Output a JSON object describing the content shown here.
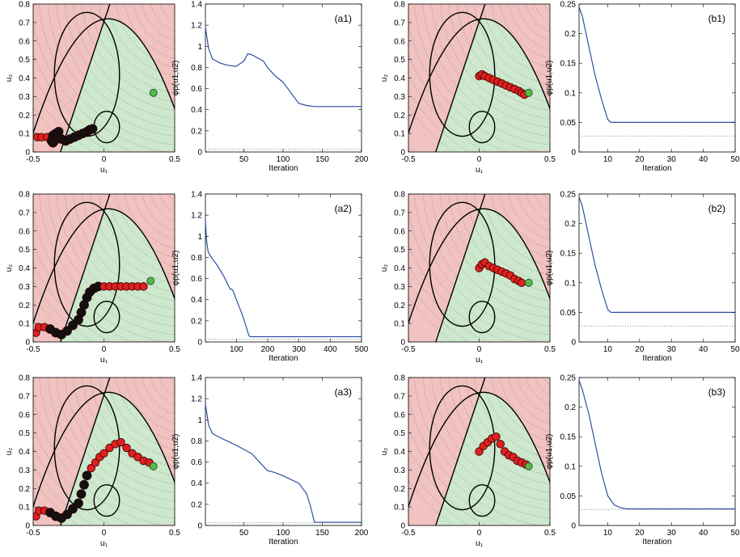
{
  "colors": {
    "infeasible": "#f0c2c0",
    "feasible": "#cde8cc",
    "path_point": "#e02020",
    "path_point_dark": "#111111",
    "optimum": "#55bb44",
    "series_line": "#2d4fa3",
    "target_line": "#666666",
    "contour": "#555555"
  },
  "chart_data": [
    {
      "id": "a1-map",
      "type": "scatter",
      "xlabel": "u₁",
      "ylabel": "u₂",
      "xlim": [
        -0.5,
        0.5
      ],
      "ylim": [
        0,
        0.8
      ],
      "xticks": [
        "-0.5",
        "0",
        "0.5"
      ],
      "yticks": [
        "0",
        "0.1",
        "0.2",
        "0.3",
        "0.4",
        "0.5",
        "0.6",
        "0.7",
        "0.8"
      ],
      "optimum": [
        0.35,
        0.32
      ],
      "points": [
        [
          -0.47,
          0.08
        ],
        [
          -0.44,
          0.08
        ],
        [
          -0.4,
          0.08
        ],
        [
          -0.37,
          0.06
        ],
        [
          -0.36,
          0.05
        ],
        [
          -0.35,
          0.06
        ],
        [
          -0.36,
          0.09
        ],
        [
          -0.34,
          0.1
        ],
        [
          -0.32,
          0.11
        ],
        [
          -0.3,
          0.07
        ],
        [
          -0.27,
          0.06
        ],
        [
          -0.24,
          0.07
        ],
        [
          -0.21,
          0.08
        ],
        [
          -0.18,
          0.09
        ],
        [
          -0.15,
          0.1
        ],
        [
          -0.12,
          0.11
        ],
        [
          -0.1,
          0.12
        ],
        [
          -0.08,
          0.125
        ]
      ],
      "dark_from": 3
    },
    {
      "id": "a1-cost",
      "type": "line",
      "xlabel": "Iteration",
      "ylabel": "φp(u1,u2)",
      "xlim": [
        1,
        200
      ],
      "ylim": [
        0,
        1.4
      ],
      "xticks": [
        50,
        100,
        150,
        200
      ],
      "yticks": [
        "0",
        "0.2",
        "0.4",
        "0.6",
        "0.8",
        "1",
        "1.2",
        "1.4"
      ],
      "annotation": "(a1)",
      "target": 0.025,
      "series": [
        {
          "x": [
            1,
            5,
            10,
            20,
            30,
            40,
            50,
            55,
            60,
            70,
            75,
            80,
            90,
            100,
            110,
            120,
            130,
            140,
            150,
            200
          ],
          "y": [
            1.18,
            0.98,
            0.88,
            0.84,
            0.82,
            0.81,
            0.86,
            0.93,
            0.92,
            0.88,
            0.86,
            0.8,
            0.72,
            0.66,
            0.56,
            0.46,
            0.44,
            0.43,
            0.43,
            0.43
          ]
        }
      ]
    },
    {
      "id": "b1-map",
      "type": "scatter",
      "xlabel": "u₁",
      "ylabel": "u₂",
      "xlim": [
        -0.5,
        0.5
      ],
      "ylim": [
        0,
        0.8
      ],
      "xticks": [
        "-0.5",
        "0",
        "0.5"
      ],
      "yticks": [
        "0",
        "0.1",
        "0.2",
        "0.3",
        "0.4",
        "0.5",
        "0.6",
        "0.7",
        "0.8"
      ],
      "optimum": [
        0.35,
        0.32
      ],
      "points": [
        [
          0.0,
          0.41
        ],
        [
          0.02,
          0.42
        ],
        [
          0.04,
          0.41
        ],
        [
          0.07,
          0.4
        ],
        [
          0.1,
          0.39
        ],
        [
          0.13,
          0.38
        ],
        [
          0.16,
          0.37
        ],
        [
          0.19,
          0.36
        ],
        [
          0.22,
          0.35
        ],
        [
          0.25,
          0.34
        ],
        [
          0.28,
          0.33
        ],
        [
          0.3,
          0.32
        ],
        [
          0.32,
          0.31
        ]
      ],
      "dark_from": 100
    },
    {
      "id": "b1-cost",
      "type": "line",
      "xlabel": "Iteration",
      "ylabel": "φp(u1,u2)",
      "xlim": [
        1,
        50
      ],
      "ylim": [
        0,
        0.25
      ],
      "xticks": [
        10,
        20,
        30,
        40,
        50
      ],
      "yticks": [
        "0",
        "0.05",
        "0.1",
        "0.15",
        "0.2",
        "0.25"
      ],
      "annotation": "(b1)",
      "target": 0.027,
      "series": [
        {
          "x": [
            1,
            2,
            4,
            6,
            8,
            10,
            11,
            12,
            50
          ],
          "y": [
            0.245,
            0.23,
            0.18,
            0.13,
            0.09,
            0.055,
            0.05,
            0.05,
            0.05
          ]
        }
      ]
    },
    {
      "id": "a2-map",
      "type": "scatter",
      "xlabel": "u₁",
      "ylabel": "u₂",
      "xlim": [
        -0.5,
        0.5
      ],
      "ylim": [
        0,
        0.8
      ],
      "xticks": [
        "-0.5",
        "0",
        "0.5"
      ],
      "yticks": [
        "0",
        "0.1",
        "0.2",
        "0.3",
        "0.4",
        "0.5",
        "0.6",
        "0.7",
        "0.8"
      ],
      "optimum": [
        0.33,
        0.33
      ],
      "points": [
        [
          -0.48,
          0.05
        ],
        [
          -0.46,
          0.08
        ],
        [
          -0.42,
          0.08
        ],
        [
          -0.38,
          0.07
        ],
        [
          -0.34,
          0.05
        ],
        [
          -0.3,
          0.04
        ],
        [
          -0.26,
          0.06
        ],
        [
          -0.22,
          0.09
        ],
        [
          -0.18,
          0.12
        ],
        [
          -0.16,
          0.16
        ],
        [
          -0.14,
          0.2
        ],
        [
          -0.12,
          0.24
        ],
        [
          -0.1,
          0.27
        ],
        [
          -0.07,
          0.29
        ],
        [
          -0.04,
          0.3
        ],
        [
          0.0,
          0.3
        ],
        [
          0.04,
          0.3
        ],
        [
          0.08,
          0.3
        ],
        [
          0.12,
          0.3
        ],
        [
          0.16,
          0.3
        ],
        [
          0.2,
          0.3
        ],
        [
          0.24,
          0.3
        ],
        [
          0.28,
          0.3
        ]
      ],
      "dark_from": 3,
      "dark_to": 14
    },
    {
      "id": "a2-cost",
      "type": "line",
      "xlabel": "Iteration",
      "ylabel": "φp(u1,u2)",
      "xlim": [
        1,
        500
      ],
      "ylim": [
        0,
        1.4
      ],
      "xticks": [
        100,
        200,
        300,
        400,
        500
      ],
      "yticks": [
        "0",
        "0.2",
        "0.4",
        "0.6",
        "0.8",
        "1",
        "1.2",
        "1.4"
      ],
      "annotation": "(a2)",
      "target": 0.025,
      "series": [
        {
          "x": [
            1,
            5,
            10,
            20,
            40,
            60,
            80,
            85,
            90,
            100,
            120,
            140,
            145,
            500
          ],
          "y": [
            1.15,
            0.95,
            0.85,
            0.8,
            0.72,
            0.62,
            0.5,
            0.5,
            0.48,
            0.4,
            0.25,
            0.06,
            0.05,
            0.05
          ]
        }
      ]
    },
    {
      "id": "b2-map",
      "type": "scatter",
      "xlabel": "u₁",
      "ylabel": "u₂",
      "xlim": [
        -0.5,
        0.5
      ],
      "ylim": [
        0,
        0.8
      ],
      "xticks": [
        "-0.5",
        "0",
        "0.5"
      ],
      "yticks": [
        "0",
        "0.1",
        "0.2",
        "0.3",
        "0.4",
        "0.5",
        "0.6",
        "0.7",
        "0.8"
      ],
      "optimum": [
        0.35,
        0.32
      ],
      "points": [
        [
          0.0,
          0.4
        ],
        [
          0.02,
          0.42
        ],
        [
          0.04,
          0.43
        ],
        [
          0.07,
          0.41
        ],
        [
          0.1,
          0.4
        ],
        [
          0.13,
          0.39
        ],
        [
          0.16,
          0.38
        ],
        [
          0.19,
          0.37
        ],
        [
          0.22,
          0.36
        ],
        [
          0.25,
          0.34
        ],
        [
          0.28,
          0.33
        ],
        [
          0.3,
          0.32
        ]
      ],
      "dark_from": 100
    },
    {
      "id": "b2-cost",
      "type": "line",
      "xlabel": "Iteration",
      "ylabel": "φp(u1,u2)",
      "xlim": [
        1,
        50
      ],
      "ylim": [
        0,
        0.25
      ],
      "xticks": [
        10,
        20,
        30,
        40,
        50
      ],
      "yticks": [
        "0",
        "0.05",
        "0.1",
        "0.15",
        "0.2",
        "0.25"
      ],
      "annotation": "(b2)",
      "target": 0.027,
      "series": [
        {
          "x": [
            1,
            2,
            4,
            6,
            8,
            10,
            11,
            12,
            50
          ],
          "y": [
            0.245,
            0.23,
            0.18,
            0.13,
            0.09,
            0.055,
            0.05,
            0.05,
            0.05
          ]
        }
      ]
    },
    {
      "id": "a3-map",
      "type": "scatter",
      "xlabel": "u₁",
      "ylabel": "u₂",
      "xlim": [
        -0.5,
        0.5
      ],
      "ylim": [
        0,
        0.8
      ],
      "xticks": [
        "-0.5",
        "0",
        "0.5"
      ],
      "yticks": [
        "0",
        "0.1",
        "0.2",
        "0.3",
        "0.4",
        "0.5",
        "0.6",
        "0.7",
        "0.8"
      ],
      "optimum": [
        0.35,
        0.32
      ],
      "points": [
        [
          -0.48,
          0.05
        ],
        [
          -0.46,
          0.08
        ],
        [
          -0.42,
          0.08
        ],
        [
          -0.38,
          0.07
        ],
        [
          -0.34,
          0.05
        ],
        [
          -0.3,
          0.04
        ],
        [
          -0.26,
          0.06
        ],
        [
          -0.22,
          0.09
        ],
        [
          -0.18,
          0.12
        ],
        [
          -0.16,
          0.17
        ],
        [
          -0.14,
          0.22
        ],
        [
          -0.12,
          0.27
        ],
        [
          -0.09,
          0.31
        ],
        [
          -0.06,
          0.34
        ],
        [
          -0.03,
          0.37
        ],
        [
          0.0,
          0.39
        ],
        [
          0.04,
          0.42
        ],
        [
          0.08,
          0.44
        ],
        [
          0.12,
          0.45
        ],
        [
          0.16,
          0.42
        ],
        [
          0.2,
          0.39
        ],
        [
          0.24,
          0.37
        ],
        [
          0.28,
          0.35
        ],
        [
          0.32,
          0.34
        ]
      ],
      "dark_from": 3,
      "dark_to": 11
    },
    {
      "id": "a3-cost",
      "type": "line",
      "xlabel": "Iteration",
      "ylabel": "φp(u1,u2)",
      "xlim": [
        1,
        200
      ],
      "ylim": [
        0,
        1.4
      ],
      "xticks": [
        50,
        100,
        150,
        200
      ],
      "yticks": [
        "0",
        "0.2",
        "0.4",
        "0.6",
        "0.8",
        "1",
        "1.2",
        "1.4"
      ],
      "annotation": "(a3)",
      "target": 0.025,
      "series": [
        {
          "x": [
            1,
            5,
            10,
            20,
            40,
            60,
            80,
            85,
            90,
            100,
            120,
            130,
            135,
            140,
            150,
            200
          ],
          "y": [
            1.15,
            0.95,
            0.87,
            0.83,
            0.76,
            0.68,
            0.52,
            0.51,
            0.5,
            0.47,
            0.4,
            0.3,
            0.18,
            0.03,
            0.03,
            0.03
          ]
        }
      ]
    },
    {
      "id": "b3-map",
      "type": "scatter",
      "xlabel": "u₁",
      "ylabel": "u₂",
      "xlim": [
        -0.5,
        0.5
      ],
      "ylim": [
        0,
        0.8
      ],
      "xticks": [
        "-0.5",
        "0",
        "0.5"
      ],
      "yticks": [
        "0",
        "0.1",
        "0.2",
        "0.3",
        "0.4",
        "0.5",
        "0.6",
        "0.7",
        "0.8"
      ],
      "optimum": [
        0.35,
        0.32
      ],
      "points": [
        [
          0.0,
          0.4
        ],
        [
          0.03,
          0.43
        ],
        [
          0.06,
          0.45
        ],
        [
          0.09,
          0.47
        ],
        [
          0.12,
          0.48
        ],
        [
          0.15,
          0.44
        ],
        [
          0.18,
          0.4
        ],
        [
          0.21,
          0.38
        ],
        [
          0.24,
          0.37
        ],
        [
          0.27,
          0.35
        ],
        [
          0.3,
          0.34
        ],
        [
          0.33,
          0.33
        ]
      ],
      "dark_from": 100
    },
    {
      "id": "b3-cost",
      "type": "line",
      "xlabel": "Iteration",
      "ylabel": "φp(u1,u2)",
      "xlim": [
        1,
        50
      ],
      "ylim": [
        0,
        0.25
      ],
      "xticks": [
        10,
        20,
        30,
        40,
        50
      ],
      "yticks": [
        "0",
        "0.05",
        "0.1",
        "0.15",
        "0.2",
        "0.25"
      ],
      "annotation": "(b3)",
      "target": 0.027,
      "series": [
        {
          "x": [
            1,
            2,
            4,
            6,
            8,
            10,
            12,
            14,
            16,
            20,
            50
          ],
          "y": [
            0.245,
            0.23,
            0.19,
            0.14,
            0.09,
            0.05,
            0.035,
            0.03,
            0.028,
            0.028,
            0.028
          ]
        }
      ]
    }
  ]
}
